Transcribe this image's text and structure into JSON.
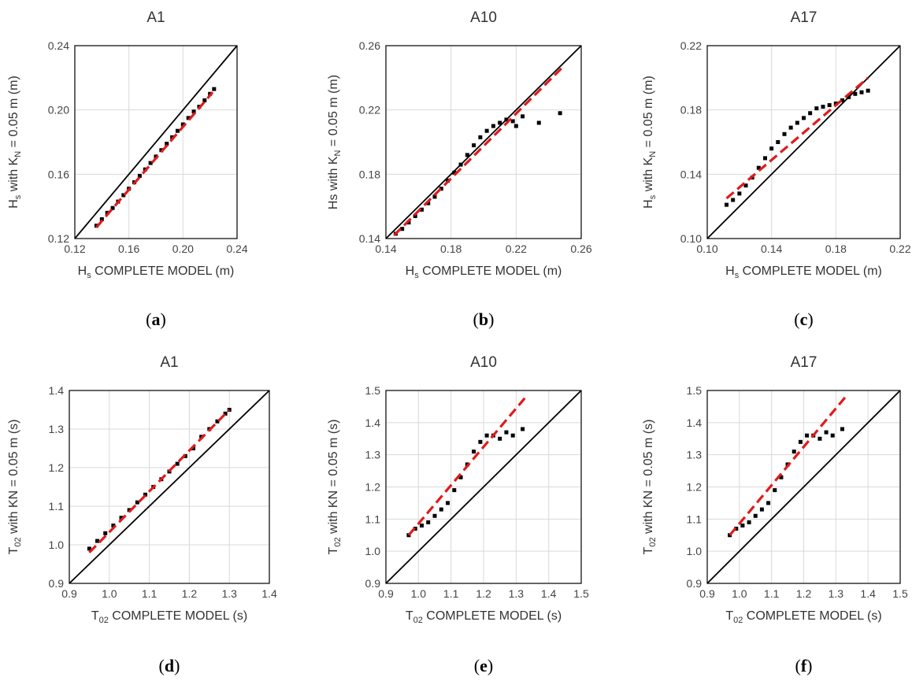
{
  "figure": {
    "colors": {
      "points": "#000000",
      "fit": "#e01b1b",
      "identity": "#000000",
      "grid": "#d9d9d9"
    },
    "panels": [
      {
        "caption": "a",
        "title": "A1",
        "xlabel": {
          "base": "H",
          "sub": "s",
          "rest": " COMPLETE MODEL (m)"
        },
        "ylabel": {
          "base": "H",
          "sub": "s",
          "mid": " with K",
          "sub2": "N",
          "rest": " = 0.05 m (m)"
        },
        "ticks": [
          "0.12",
          "0.16",
          "0.20",
          "0.24"
        ]
      },
      {
        "caption": "b",
        "title": "A10",
        "xlabel": {
          "base": "H",
          "sub": "s",
          "rest": " COMPLETE MODEL (m)"
        },
        "ylabel": {
          "base": "Hs with K",
          "sub": "N",
          "rest": " = 0.05 m (m)"
        },
        "ticks": [
          "0.14",
          "0.18",
          "0.22",
          "0.26"
        ]
      },
      {
        "caption": "c",
        "title": "A17",
        "xlabel": {
          "base": "H",
          "sub": "s",
          "rest": " COMPLETE MODEL (m)"
        },
        "ylabel": {
          "base": "H",
          "sub": "s",
          "mid": " with K",
          "sub2": "N",
          "rest": " = 0.05 m (m)"
        },
        "ticks": [
          "0.10",
          "0.14",
          "0.18",
          "0.22"
        ]
      },
      {
        "caption": "d",
        "title": "A1",
        "xlabel": {
          "base": "T",
          "sub": "02",
          "rest": " COMPLETE MODEL (s)"
        },
        "ylabel": {
          "base": "T",
          "sub": "02",
          "rest": " with KN = 0.05 m (s)"
        },
        "ticks": [
          "0.9",
          "1.0",
          "1.1",
          "1.2",
          "1.3",
          "1.4"
        ]
      },
      {
        "caption": "e",
        "title": "A10",
        "xlabel": {
          "base": "T",
          "sub": "02",
          "rest": " COMPLETE MODEL (s)"
        },
        "ylabel": {
          "base": "T",
          "sub": "02",
          "rest": " with KN = 0.05 m (s)"
        },
        "ticks": [
          "0.9",
          "1.0",
          "1.1",
          "1.2",
          "1.3",
          "1.4",
          "1.5"
        ]
      },
      {
        "caption": "f",
        "title": "A17",
        "xlabel": {
          "base": "T",
          "sub": "02",
          "rest": " COMPLETE MODEL (s)"
        },
        "ylabel": {
          "base": "T",
          "sub": "02",
          "rest": " with KN = 0.05 m (s)"
        },
        "ticks": [
          "0.9",
          "1.0",
          "1.1",
          "1.2",
          "1.3",
          "1.4",
          "1.5"
        ]
      }
    ]
  },
  "chart_data": [
    {
      "type": "scatter",
      "title": "A1",
      "xlabel": "Hs COMPLETE MODEL (m)",
      "ylabel": "Hs with KN = 0.05 m (m)",
      "xlim": [
        0.12,
        0.24
      ],
      "ylim": [
        0.12,
        0.24
      ],
      "grid": true,
      "series": [
        {
          "values": [
            [
              0.136,
              0.128
            ],
            [
              0.14,
              0.132
            ],
            [
              0.144,
              0.136
            ],
            [
              0.148,
              0.139
            ],
            [
              0.152,
              0.143
            ],
            [
              0.156,
              0.147
            ],
            [
              0.16,
              0.151
            ],
            [
              0.164,
              0.155
            ],
            [
              0.168,
              0.159
            ],
            [
              0.172,
              0.163
            ],
            [
              0.176,
              0.167
            ],
            [
              0.18,
              0.171
            ],
            [
              0.184,
              0.175
            ],
            [
              0.188,
              0.179
            ],
            [
              0.192,
              0.183
            ],
            [
              0.196,
              0.187
            ],
            [
              0.2,
              0.191
            ],
            [
              0.204,
              0.195
            ],
            [
              0.208,
              0.199
            ],
            [
              0.212,
              0.202
            ],
            [
              0.216,
              0.206
            ],
            [
              0.22,
              0.21
            ],
            [
              0.223,
              0.213
            ]
          ]
        }
      ],
      "fit_line": [
        [
          0.136,
          0.127
        ],
        [
          0.222,
          0.211
        ]
      ],
      "identity_line": [
        [
          0.12,
          0.12
        ],
        [
          0.24,
          0.24
        ]
      ]
    },
    {
      "type": "scatter",
      "title": "A10",
      "xlabel": "Hs COMPLETE MODEL (m)",
      "ylabel": "Hs with KN = 0.05 m (m)",
      "xlim": [
        0.14,
        0.26
      ],
      "ylim": [
        0.14,
        0.26
      ],
      "grid": true,
      "series": [
        {
          "values": [
            [
              0.146,
              0.143
            ],
            [
              0.15,
              0.146
            ],
            [
              0.154,
              0.15
            ],
            [
              0.158,
              0.154
            ],
            [
              0.162,
              0.158
            ],
            [
              0.166,
              0.162
            ],
            [
              0.17,
              0.166
            ],
            [
              0.174,
              0.171
            ],
            [
              0.178,
              0.176
            ],
            [
              0.182,
              0.181
            ],
            [
              0.186,
              0.186
            ],
            [
              0.19,
              0.192
            ],
            [
              0.194,
              0.198
            ],
            [
              0.198,
              0.203
            ],
            [
              0.202,
              0.207
            ],
            [
              0.206,
              0.21
            ],
            [
              0.21,
              0.212
            ],
            [
              0.214,
              0.214
            ],
            [
              0.218,
              0.213
            ],
            [
              0.22,
              0.21
            ],
            [
              0.224,
              0.216
            ],
            [
              0.234,
              0.212
            ],
            [
              0.247,
              0.218
            ]
          ]
        }
      ],
      "fit_line": [
        [
          0.145,
          0.142
        ],
        [
          0.248,
          0.246
        ]
      ],
      "identity_line": [
        [
          0.14,
          0.14
        ],
        [
          0.26,
          0.26
        ]
      ]
    },
    {
      "type": "scatter",
      "title": "A17",
      "xlabel": "Hs COMPLETE MODEL (m)",
      "ylabel": "Hs with KN = 0.05 m (m)",
      "xlim": [
        0.1,
        0.22
      ],
      "ylim": [
        0.1,
        0.22
      ],
      "grid": true,
      "series": [
        {
          "values": [
            [
              0.112,
              0.121
            ],
            [
              0.116,
              0.124
            ],
            [
              0.12,
              0.128
            ],
            [
              0.124,
              0.133
            ],
            [
              0.128,
              0.138
            ],
            [
              0.132,
              0.144
            ],
            [
              0.136,
              0.15
            ],
            [
              0.14,
              0.156
            ],
            [
              0.144,
              0.16
            ],
            [
              0.148,
              0.165
            ],
            [
              0.152,
              0.169
            ],
            [
              0.156,
              0.172
            ],
            [
              0.16,
              0.175
            ],
            [
              0.164,
              0.178
            ],
            [
              0.168,
              0.181
            ],
            [
              0.172,
              0.182
            ],
            [
              0.176,
              0.183
            ],
            [
              0.18,
              0.184
            ],
            [
              0.184,
              0.186
            ],
            [
              0.188,
              0.188
            ],
            [
              0.192,
              0.19
            ],
            [
              0.196,
              0.191
            ],
            [
              0.2,
              0.192
            ]
          ]
        }
      ],
      "fit_line": [
        [
          0.112,
          0.125
        ],
        [
          0.2,
          0.2
        ]
      ],
      "identity_line": [
        [
          0.1,
          0.1
        ],
        [
          0.22,
          0.22
        ]
      ]
    },
    {
      "type": "scatter",
      "title": "A1",
      "xlabel": "T02 COMPLETE MODEL (s)",
      "ylabel": "T02 with KN = 0.05 m (s)",
      "xlim": [
        0.9,
        1.4
      ],
      "ylim": [
        0.9,
        1.4
      ],
      "grid": true,
      "series": [
        {
          "values": [
            [
              0.95,
              0.99
            ],
            [
              0.97,
              1.01
            ],
            [
              0.99,
              1.03
            ],
            [
              1.01,
              1.05
            ],
            [
              1.03,
              1.07
            ],
            [
              1.05,
              1.09
            ],
            [
              1.07,
              1.11
            ],
            [
              1.09,
              1.13
            ],
            [
              1.11,
              1.15
            ],
            [
              1.13,
              1.17
            ],
            [
              1.15,
              1.19
            ],
            [
              1.17,
              1.21
            ],
            [
              1.19,
              1.23
            ],
            [
              1.21,
              1.25
            ],
            [
              1.23,
              1.28
            ],
            [
              1.25,
              1.3
            ],
            [
              1.27,
              1.32
            ],
            [
              1.29,
              1.34
            ],
            [
              1.3,
              1.35
            ]
          ]
        }
      ],
      "fit_line": [
        [
          0.95,
          0.98
        ],
        [
          1.3,
          1.35
        ]
      ],
      "identity_line": [
        [
          0.9,
          0.9
        ],
        [
          1.4,
          1.4
        ]
      ]
    },
    {
      "type": "scatter",
      "title": "A10",
      "xlabel": "T02 COMPLETE MODEL (s)",
      "ylabel": "T02 with KN = 0.05 m (s)",
      "xlim": [
        0.9,
        1.5
      ],
      "ylim": [
        0.9,
        1.5
      ],
      "grid": true,
      "series": [
        {
          "values": [
            [
              0.97,
              1.05
            ],
            [
              0.99,
              1.07
            ],
            [
              1.01,
              1.08
            ],
            [
              1.03,
              1.09
            ],
            [
              1.05,
              1.11
            ],
            [
              1.07,
              1.13
            ],
            [
              1.09,
              1.15
            ],
            [
              1.11,
              1.19
            ],
            [
              1.13,
              1.23
            ],
            [
              1.15,
              1.27
            ],
            [
              1.17,
              1.31
            ],
            [
              1.19,
              1.34
            ],
            [
              1.21,
              1.36
            ],
            [
              1.23,
              1.36
            ],
            [
              1.25,
              1.35
            ],
            [
              1.27,
              1.37
            ],
            [
              1.29,
              1.36
            ],
            [
              1.32,
              1.38
            ]
          ]
        }
      ],
      "fit_line": [
        [
          0.97,
          1.05
        ],
        [
          1.33,
          1.48
        ]
      ],
      "identity_line": [
        [
          0.9,
          0.9
        ],
        [
          1.5,
          1.5
        ]
      ]
    },
    {
      "type": "scatter",
      "title": "A17",
      "xlabel": "T02 COMPLETE MODEL (s)",
      "ylabel": "T02 with KN = 0.05 m (s)",
      "xlim": [
        0.9,
        1.5
      ],
      "ylim": [
        0.9,
        1.5
      ],
      "grid": true,
      "series": [
        {
          "values": [
            [
              0.97,
              1.05
            ],
            [
              0.99,
              1.07
            ],
            [
              1.01,
              1.08
            ],
            [
              1.03,
              1.09
            ],
            [
              1.05,
              1.11
            ],
            [
              1.07,
              1.13
            ],
            [
              1.09,
              1.15
            ],
            [
              1.11,
              1.19
            ],
            [
              1.13,
              1.23
            ],
            [
              1.15,
              1.27
            ],
            [
              1.17,
              1.31
            ],
            [
              1.19,
              1.34
            ],
            [
              1.21,
              1.36
            ],
            [
              1.23,
              1.36
            ],
            [
              1.25,
              1.35
            ],
            [
              1.27,
              1.37
            ],
            [
              1.29,
              1.36
            ],
            [
              1.32,
              1.38
            ]
          ]
        }
      ],
      "fit_line": [
        [
          0.97,
          1.05
        ],
        [
          1.33,
          1.48
        ]
      ],
      "identity_line": [
        [
          0.9,
          0.9
        ],
        [
          1.5,
          1.5
        ]
      ]
    }
  ]
}
